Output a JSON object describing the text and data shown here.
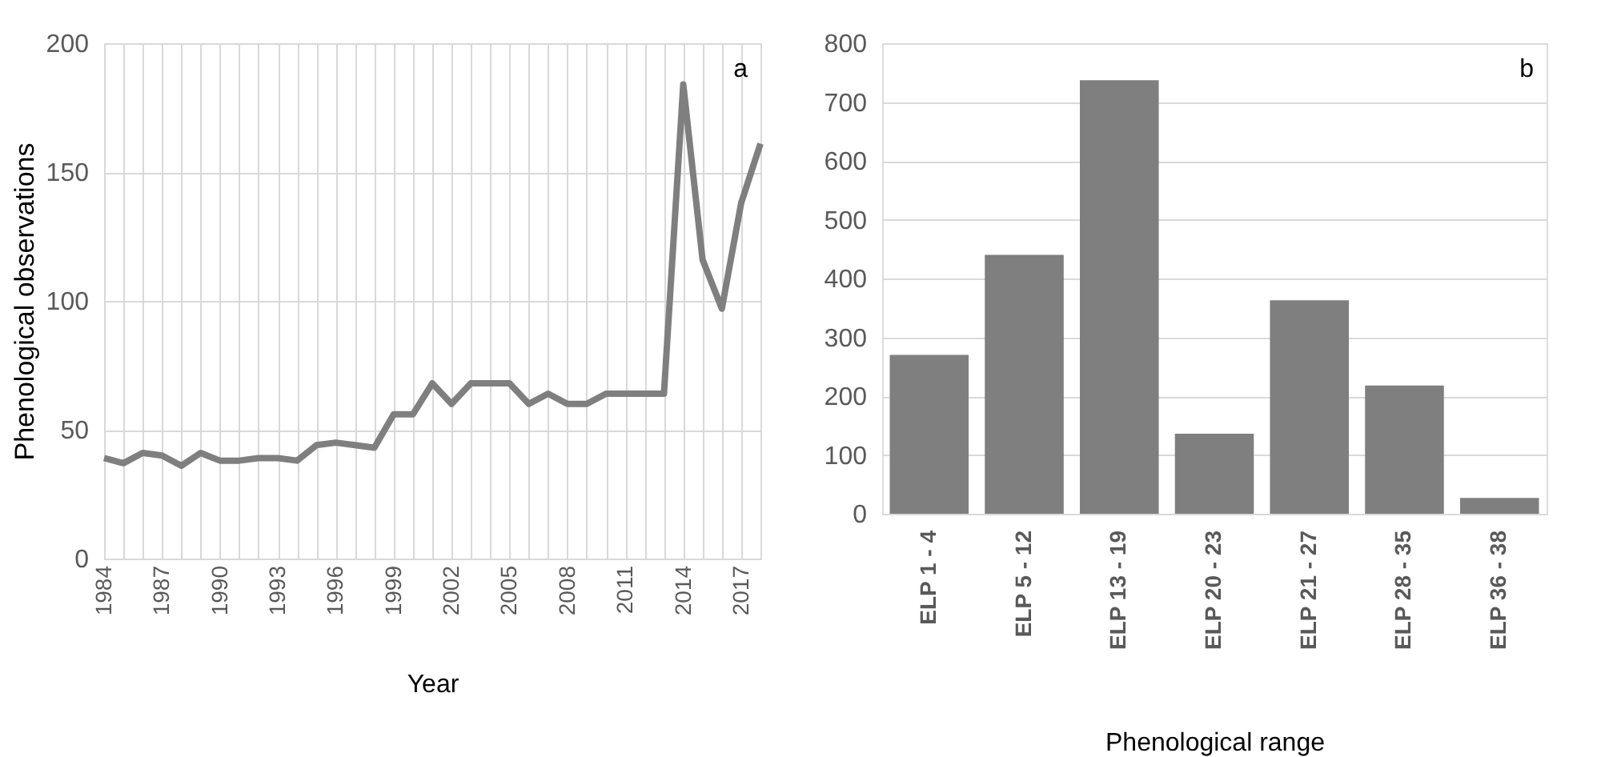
{
  "chart_data": [
    {
      "type": "line",
      "ylabel": "Phenological observations",
      "xlabel": "Year",
      "annotations": [
        "a"
      ],
      "x": [
        1984,
        1985,
        1986,
        1987,
        1988,
        1989,
        1990,
        1991,
        1992,
        1993,
        1994,
        1995,
        1996,
        1997,
        1998,
        1999,
        2000,
        2001,
        2002,
        2003,
        2004,
        2005,
        2006,
        2007,
        2008,
        2009,
        2010,
        2011,
        2012,
        2013,
        2014,
        2015,
        2016,
        2017,
        2018
      ],
      "series": [
        {
          "color": "#7f7f7f",
          "values": [
            39,
            37,
            41,
            40,
            36,
            41,
            38,
            38,
            39,
            39,
            38,
            44,
            45,
            44,
            43,
            56,
            56,
            68,
            60,
            68,
            68,
            68,
            60,
            64,
            60,
            60,
            64,
            64,
            64,
            64,
            184,
            116,
            97,
            138,
            161
          ]
        }
      ],
      "xlim": [
        1984,
        2018
      ],
      "xticks": [
        1984,
        {
          "value": 1985,
          "label": null
        },
        {
          "value": 1986,
          "label": null
        },
        1987,
        {
          "value": 1988,
          "label": null
        },
        {
          "value": 1989,
          "label": null
        },
        1990,
        {
          "value": 1991,
          "label": null
        },
        {
          "value": 1992,
          "label": null
        },
        1993,
        {
          "value": 1994,
          "label": null
        },
        {
          "value": 1995,
          "label": null
        },
        1996,
        {
          "value": 1997,
          "label": null
        },
        {
          "value": 1998,
          "label": null
        },
        1999,
        {
          "value": 2000,
          "label": null
        },
        {
          "value": 2001,
          "label": null
        },
        2002,
        {
          "value": 2003,
          "label": null
        },
        {
          "value": 2004,
          "label": null
        },
        2005,
        {
          "value": 2006,
          "label": null
        },
        {
          "value": 2007,
          "label": null
        },
        2008,
        {
          "value": 2009,
          "label": null
        },
        {
          "value": 2010,
          "label": null
        },
        2011,
        {
          "value": 2012,
          "label": null
        },
        {
          "value": 2013,
          "label": null
        },
        2014,
        {
          "value": 2015,
          "label": null
        },
        {
          "value": 2016,
          "label": null
        },
        2017,
        {
          "value": 2018,
          "label": null
        }
      ],
      "ylim": [
        0,
        200
      ],
      "yticks": [
        0,
        50,
        100,
        150,
        200
      ],
      "grid": true,
      "line_style": "solid",
      "marker": "none"
    },
    {
      "type": "bar",
      "xlabel": "Phenological range",
      "annotations": [
        "b"
      ],
      "categories": [
        "ELP 1 - 4",
        "ELP 5 - 12",
        "ELP 13 - 19",
        "ELP 20 - 23",
        "ELP 21 - 27",
        "ELP 28 - 35",
        "ELP 36 - 38"
      ],
      "values": [
        270,
        440,
        737,
        136,
        363,
        218,
        27
      ],
      "color": "#7f7f7f",
      "ylim": [
        0,
        800
      ],
      "yticks": [
        0,
        100,
        200,
        300,
        400,
        500,
        600,
        700,
        800
      ],
      "grid": "y"
    }
  ]
}
